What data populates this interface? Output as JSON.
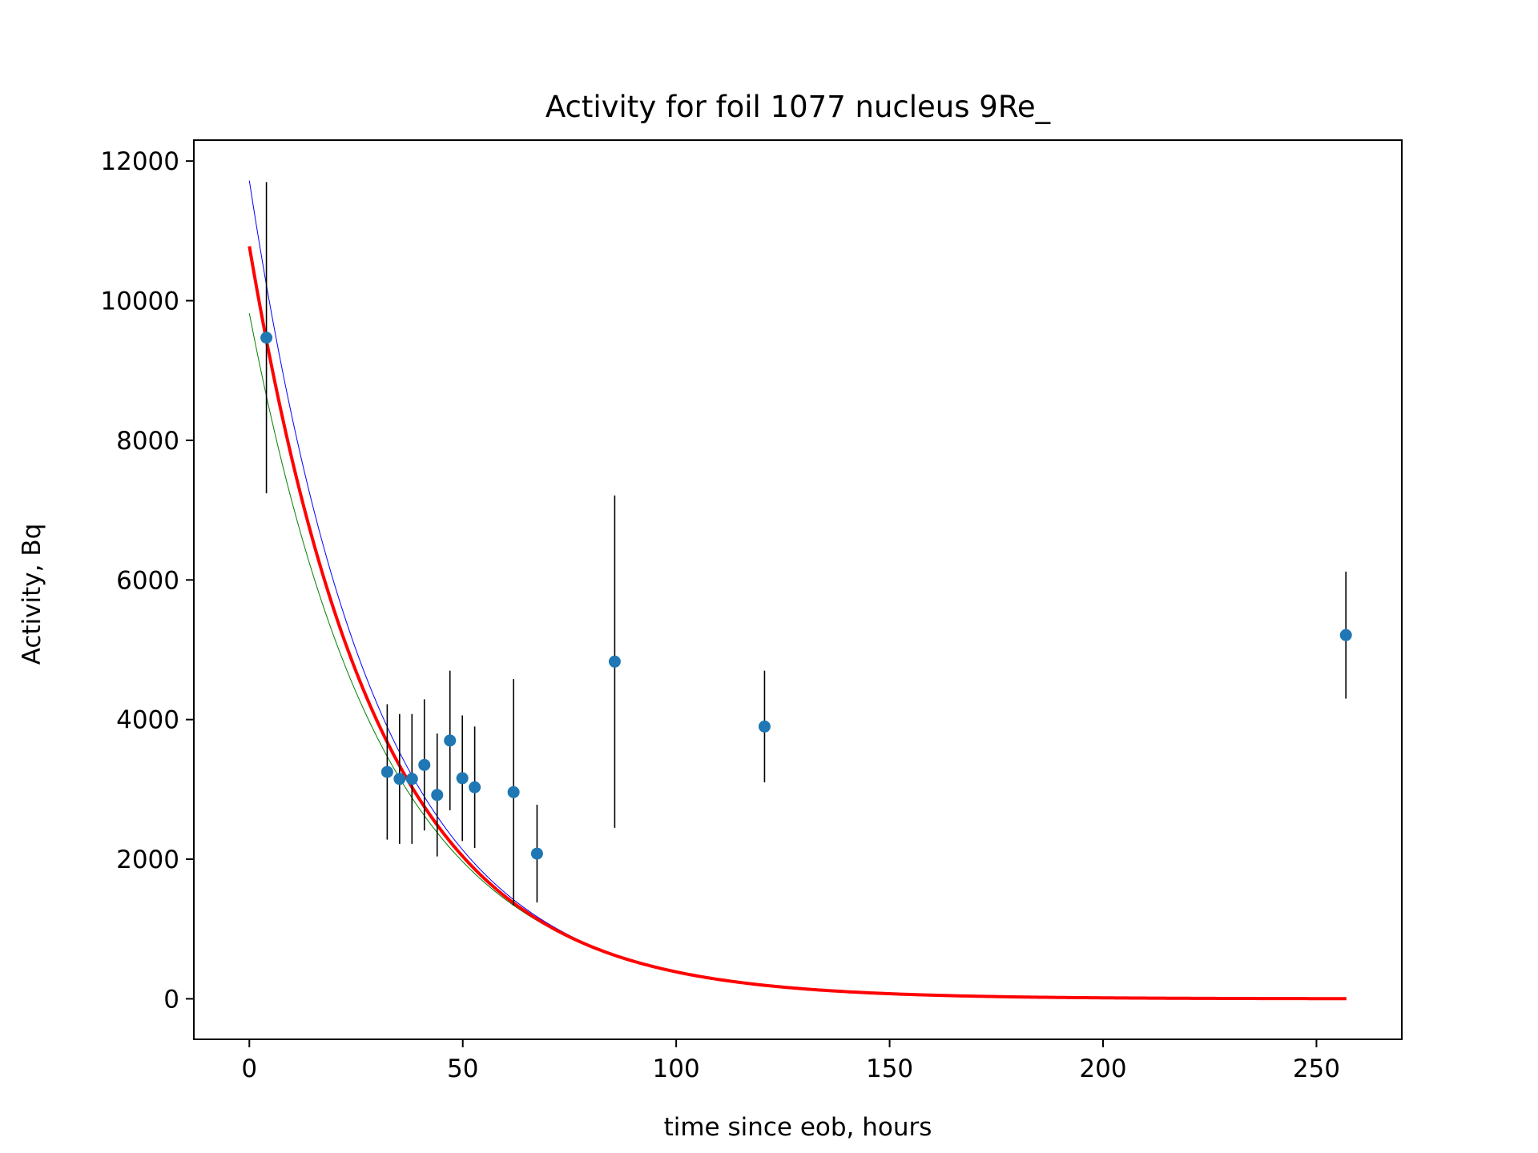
{
  "chart_data": {
    "type": "scatter",
    "title": "Activity for foil 1077 nucleus 9Re_",
    "xlabel": "time since eob, hours",
    "ylabel": "Activity, Bq",
    "xlim": [
      -13,
      270
    ],
    "ylim": [
      -580,
      12300
    ],
    "xticks": [
      0,
      50,
      100,
      150,
      200,
      250
    ],
    "yticks": [
      0,
      2000,
      4000,
      6000,
      8000,
      10000,
      12000
    ],
    "grid": false,
    "colors": {
      "points": "#1f77b4",
      "errorbars": "#000000",
      "fit": "#ff0000",
      "upper": "#0000ff",
      "lower": "#008000"
    },
    "points": [
      {
        "x": 4.0,
        "y": 9470,
        "err": 2230
      },
      {
        "x": 32.3,
        "y": 3250,
        "err": 970
      },
      {
        "x": 35.2,
        "y": 3150,
        "err": 930
      },
      {
        "x": 38.1,
        "y": 3150,
        "err": 930
      },
      {
        "x": 41.0,
        "y": 3350,
        "err": 940
      },
      {
        "x": 44.0,
        "y": 2920,
        "err": 880
      },
      {
        "x": 47.0,
        "y": 3700,
        "err": 1000
      },
      {
        "x": 49.9,
        "y": 3160,
        "err": 900
      },
      {
        "x": 52.8,
        "y": 3030,
        "err": 870
      },
      {
        "x": 61.9,
        "y": 2960,
        "err": 1620
      },
      {
        "x": 67.4,
        "y": 2080,
        "err": 700
      },
      {
        "x": 85.6,
        "y": 4830,
        "err": 2380
      },
      {
        "x": 120.7,
        "y": 3900,
        "err": 800
      },
      {
        "x": 256.9,
        "y": 5210,
        "err": 910
      }
    ],
    "fit_curves": [
      {
        "role": "upper",
        "A0": 11720,
        "decay_per_hour": 0.0341,
        "x_range": [
          0,
          257
        ],
        "width": 1
      },
      {
        "role": "lower",
        "A0": 9820,
        "decay_per_hour": 0.0322,
        "x_range": [
          0,
          257
        ],
        "width": 1
      },
      {
        "role": "fit",
        "A0": 10780,
        "decay_per_hour": 0.0333,
        "x_range": [
          0,
          257
        ],
        "width": 4
      }
    ]
  }
}
